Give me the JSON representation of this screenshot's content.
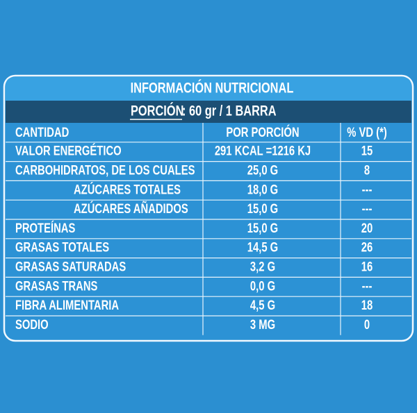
{
  "title": "INFORMACIÓN NUTRICIONAL",
  "portion": {
    "label": "PORCIÓN",
    "text": ": 60 gr  / 1 BARRA"
  },
  "table": {
    "header": [
      "CANTIDAD",
      "POR PORCIÓN",
      "% VD (*)"
    ],
    "rows": [
      [
        "VALOR ENERGÉTICO",
        "291 KCAL =1216  KJ",
        "15"
      ],
      [
        "CARBOHIDRATOS, DE LOS CUALES",
        "25,0 G",
        "8"
      ],
      [
        "AZÚCARES TOTALES",
        "18,0  G",
        "---"
      ],
      [
        "AZÚCARES AÑADIDOS",
        "15,0  G",
        "---"
      ],
      [
        "PROTEÍNAS",
        "15,0 G",
        "20"
      ],
      [
        "GRASAS TOTALES",
        "14,5 G",
        "26"
      ],
      [
        "GRASAS SATURADAS",
        "3,2 G",
        "16"
      ],
      [
        "GRASAS TRANS",
        "0,0 G",
        "---"
      ],
      [
        "FIBRA ALIMENTARIA",
        "4,5 G",
        "18"
      ],
      [
        "SODIO",
        "3 MG",
        "0"
      ]
    ]
  }
}
